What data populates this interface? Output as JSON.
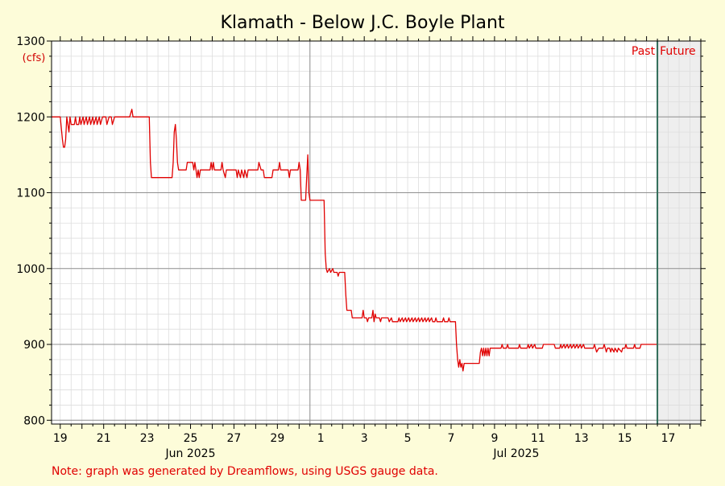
{
  "colors": {
    "background": "#fdfcd9",
    "plot_background": "#ffffff",
    "future_shade": "#eeeeee",
    "series": "#e00000",
    "now_line": "#2e6b57",
    "grid_minor": "#dddddd",
    "grid_major": "#909090",
    "unit_text": "#d00000",
    "note_text": "#e00000",
    "past_future_text": "#e00000"
  },
  "chart_data": {
    "type": "line",
    "title": "Klamath - Below J.C. Boyle Plant",
    "ylabel": "(cfs)",
    "xlabel": "",
    "grid": true,
    "ylim": [
      795,
      1300
    ],
    "y_ticks": [
      800,
      900,
      1000,
      1100,
      1200,
      1300
    ],
    "x_unit": "day index where 19 = 19 Jun 2025",
    "xlim": [
      18.6,
      48.5
    ],
    "x_ticks": [
      {
        "x": 19,
        "label": "19"
      },
      {
        "x": 21,
        "label": "21"
      },
      {
        "x": 23,
        "label": "23"
      },
      {
        "x": 25,
        "label": "25"
      },
      {
        "x": 27,
        "label": "27"
      },
      {
        "x": 29,
        "label": "29"
      },
      {
        "x": 31,
        "label": "1"
      },
      {
        "x": 33,
        "label": "3"
      },
      {
        "x": 35,
        "label": "5"
      },
      {
        "x": 37,
        "label": "7"
      },
      {
        "x": 39,
        "label": "9"
      },
      {
        "x": 41,
        "label": "11"
      },
      {
        "x": 43,
        "label": "13"
      },
      {
        "x": 45,
        "label": "15"
      },
      {
        "x": 47,
        "label": "17"
      }
    ],
    "month_labels": [
      {
        "x": 25,
        "label": "Jun 2025"
      },
      {
        "x": 40,
        "label": "Jul 2025"
      }
    ],
    "month_boundary_x": 30.5,
    "now_x": 46.5,
    "past_label": "Past",
    "future_label": "Future",
    "series": [
      {
        "points": [
          [
            18.6,
            1200
          ],
          [
            19.0,
            1200
          ],
          [
            19.1,
            1170
          ],
          [
            19.15,
            1160
          ],
          [
            19.2,
            1160
          ],
          [
            19.25,
            1170
          ],
          [
            19.3,
            1200
          ],
          [
            19.4,
            1180
          ],
          [
            19.45,
            1200
          ],
          [
            19.5,
            1190
          ],
          [
            19.65,
            1190
          ],
          [
            19.7,
            1200
          ],
          [
            19.75,
            1190
          ],
          [
            19.85,
            1190
          ],
          [
            19.9,
            1200
          ],
          [
            19.95,
            1190
          ],
          [
            20.05,
            1200
          ],
          [
            20.1,
            1190
          ],
          [
            20.2,
            1200
          ],
          [
            20.25,
            1190
          ],
          [
            20.35,
            1200
          ],
          [
            20.4,
            1190
          ],
          [
            20.5,
            1200
          ],
          [
            20.55,
            1190
          ],
          [
            20.65,
            1200
          ],
          [
            20.7,
            1190
          ],
          [
            20.8,
            1200
          ],
          [
            20.85,
            1190
          ],
          [
            20.95,
            1200
          ],
          [
            21.0,
            1200
          ],
          [
            21.1,
            1200
          ],
          [
            21.15,
            1190
          ],
          [
            21.25,
            1200
          ],
          [
            21.35,
            1200
          ],
          [
            21.4,
            1190
          ],
          [
            21.5,
            1200
          ],
          [
            22.2,
            1200
          ],
          [
            22.3,
            1210
          ],
          [
            22.35,
            1200
          ],
          [
            23.1,
            1200
          ],
          [
            23.15,
            1140
          ],
          [
            23.2,
            1120
          ],
          [
            24.15,
            1120
          ],
          [
            24.2,
            1140
          ],
          [
            24.25,
            1180
          ],
          [
            24.3,
            1190
          ],
          [
            24.35,
            1170
          ],
          [
            24.4,
            1140
          ],
          [
            24.45,
            1130
          ],
          [
            24.8,
            1130
          ],
          [
            24.85,
            1140
          ],
          [
            25.1,
            1140
          ],
          [
            25.15,
            1130
          ],
          [
            25.2,
            1140
          ],
          [
            25.25,
            1130
          ],
          [
            25.3,
            1120
          ],
          [
            25.35,
            1130
          ],
          [
            25.4,
            1120
          ],
          [
            25.45,
            1130
          ],
          [
            25.9,
            1130
          ],
          [
            25.95,
            1140
          ],
          [
            26.0,
            1130
          ],
          [
            26.05,
            1140
          ],
          [
            26.1,
            1130
          ],
          [
            26.4,
            1130
          ],
          [
            26.45,
            1140
          ],
          [
            26.5,
            1130
          ],
          [
            26.6,
            1120
          ],
          [
            26.65,
            1130
          ],
          [
            27.1,
            1130
          ],
          [
            27.15,
            1120
          ],
          [
            27.2,
            1130
          ],
          [
            27.3,
            1120
          ],
          [
            27.35,
            1130
          ],
          [
            27.45,
            1120
          ],
          [
            27.5,
            1130
          ],
          [
            27.6,
            1120
          ],
          [
            27.65,
            1130
          ],
          [
            28.1,
            1130
          ],
          [
            28.15,
            1140
          ],
          [
            28.25,
            1130
          ],
          [
            28.35,
            1130
          ],
          [
            28.4,
            1120
          ],
          [
            28.75,
            1120
          ],
          [
            28.8,
            1130
          ],
          [
            29.05,
            1130
          ],
          [
            29.1,
            1140
          ],
          [
            29.15,
            1130
          ],
          [
            29.5,
            1130
          ],
          [
            29.55,
            1120
          ],
          [
            29.6,
            1130
          ],
          [
            29.95,
            1130
          ],
          [
            30.0,
            1140
          ],
          [
            30.05,
            1130
          ],
          [
            30.1,
            1090
          ],
          [
            30.3,
            1090
          ],
          [
            30.35,
            1120
          ],
          [
            30.4,
            1150
          ],
          [
            30.45,
            1100
          ],
          [
            30.5,
            1090
          ],
          [
            31.15,
            1090
          ],
          [
            31.2,
            1020
          ],
          [
            31.25,
            1000
          ],
          [
            31.3,
            995
          ],
          [
            31.4,
            1000
          ],
          [
            31.45,
            995
          ],
          [
            31.55,
            1000
          ],
          [
            31.6,
            995
          ],
          [
            31.75,
            995
          ],
          [
            31.8,
            990
          ],
          [
            31.85,
            995
          ],
          [
            32.1,
            995
          ],
          [
            32.15,
            965
          ],
          [
            32.2,
            945
          ],
          [
            32.4,
            945
          ],
          [
            32.45,
            935
          ],
          [
            32.9,
            935
          ],
          [
            32.95,
            945
          ],
          [
            33.0,
            935
          ],
          [
            33.1,
            935
          ],
          [
            33.15,
            930
          ],
          [
            33.2,
            935
          ],
          [
            33.35,
            935
          ],
          [
            33.4,
            945
          ],
          [
            33.45,
            930
          ],
          [
            33.5,
            940
          ],
          [
            33.55,
            935
          ],
          [
            33.7,
            935
          ],
          [
            33.75,
            930
          ],
          [
            33.8,
            935
          ],
          [
            34.1,
            935
          ],
          [
            34.15,
            930
          ],
          [
            34.25,
            935
          ],
          [
            34.3,
            930
          ],
          [
            34.55,
            930
          ],
          [
            34.6,
            935
          ],
          [
            34.65,
            930
          ],
          [
            34.75,
            935
          ],
          [
            34.8,
            930
          ],
          [
            34.9,
            935
          ],
          [
            34.95,
            930
          ],
          [
            35.05,
            935
          ],
          [
            35.1,
            930
          ],
          [
            35.2,
            935
          ],
          [
            35.25,
            930
          ],
          [
            35.35,
            935
          ],
          [
            35.4,
            930
          ],
          [
            35.5,
            935
          ],
          [
            35.55,
            930
          ],
          [
            35.65,
            935
          ],
          [
            35.7,
            930
          ],
          [
            35.8,
            935
          ],
          [
            35.85,
            930
          ],
          [
            35.95,
            935
          ],
          [
            36.0,
            930
          ],
          [
            36.1,
            935
          ],
          [
            36.15,
            930
          ],
          [
            36.25,
            930
          ],
          [
            36.3,
            935
          ],
          [
            36.35,
            930
          ],
          [
            36.6,
            930
          ],
          [
            36.65,
            935
          ],
          [
            36.7,
            930
          ],
          [
            36.85,
            930
          ],
          [
            36.9,
            935
          ],
          [
            36.95,
            930
          ],
          [
            37.2,
            930
          ],
          [
            37.25,
            900
          ],
          [
            37.3,
            880
          ],
          [
            37.35,
            870
          ],
          [
            37.4,
            880
          ],
          [
            37.45,
            870
          ],
          [
            37.5,
            875
          ],
          [
            37.55,
            865
          ],
          [
            37.6,
            875
          ],
          [
            38.3,
            875
          ],
          [
            38.35,
            890
          ],
          [
            38.4,
            895
          ],
          [
            38.45,
            885
          ],
          [
            38.5,
            895
          ],
          [
            38.55,
            885
          ],
          [
            38.6,
            895
          ],
          [
            38.65,
            885
          ],
          [
            38.7,
            895
          ],
          [
            38.75,
            885
          ],
          [
            38.8,
            895
          ],
          [
            39.3,
            895
          ],
          [
            39.35,
            900
          ],
          [
            39.4,
            895
          ],
          [
            39.55,
            895
          ],
          [
            39.6,
            900
          ],
          [
            39.65,
            895
          ],
          [
            40.1,
            895
          ],
          [
            40.15,
            900
          ],
          [
            40.2,
            895
          ],
          [
            40.5,
            895
          ],
          [
            40.55,
            900
          ],
          [
            40.6,
            895
          ],
          [
            40.7,
            900
          ],
          [
            40.75,
            895
          ],
          [
            40.85,
            900
          ],
          [
            40.9,
            895
          ],
          [
            41.2,
            895
          ],
          [
            41.25,
            900
          ],
          [
            41.75,
            900
          ],
          [
            41.8,
            895
          ],
          [
            42.0,
            895
          ],
          [
            42.05,
            900
          ],
          [
            42.1,
            895
          ],
          [
            42.2,
            900
          ],
          [
            42.25,
            895
          ],
          [
            42.35,
            900
          ],
          [
            42.4,
            895
          ],
          [
            42.5,
            900
          ],
          [
            42.55,
            895
          ],
          [
            42.65,
            900
          ],
          [
            42.7,
            895
          ],
          [
            42.8,
            900
          ],
          [
            42.85,
            895
          ],
          [
            42.95,
            900
          ],
          [
            43.0,
            895
          ],
          [
            43.1,
            900
          ],
          [
            43.15,
            895
          ],
          [
            43.55,
            895
          ],
          [
            43.6,
            900
          ],
          [
            43.65,
            895
          ],
          [
            43.7,
            890
          ],
          [
            43.8,
            895
          ],
          [
            44.0,
            895
          ],
          [
            44.05,
            900
          ],
          [
            44.1,
            895
          ],
          [
            44.15,
            890
          ],
          [
            44.2,
            895
          ],
          [
            44.3,
            895
          ],
          [
            44.35,
            890
          ],
          [
            44.4,
            895
          ],
          [
            44.5,
            890
          ],
          [
            44.55,
            895
          ],
          [
            44.65,
            890
          ],
          [
            44.7,
            895
          ],
          [
            44.85,
            890
          ],
          [
            44.9,
            895
          ],
          [
            45.0,
            895
          ],
          [
            45.05,
            900
          ],
          [
            45.1,
            895
          ],
          [
            45.4,
            895
          ],
          [
            45.45,
            900
          ],
          [
            45.5,
            895
          ],
          [
            45.7,
            895
          ],
          [
            45.75,
            900
          ],
          [
            46.5,
            900
          ]
        ]
      }
    ]
  },
  "footer": {
    "note": "Note: graph was generated by Dreamflows, using USGS gauge data."
  }
}
